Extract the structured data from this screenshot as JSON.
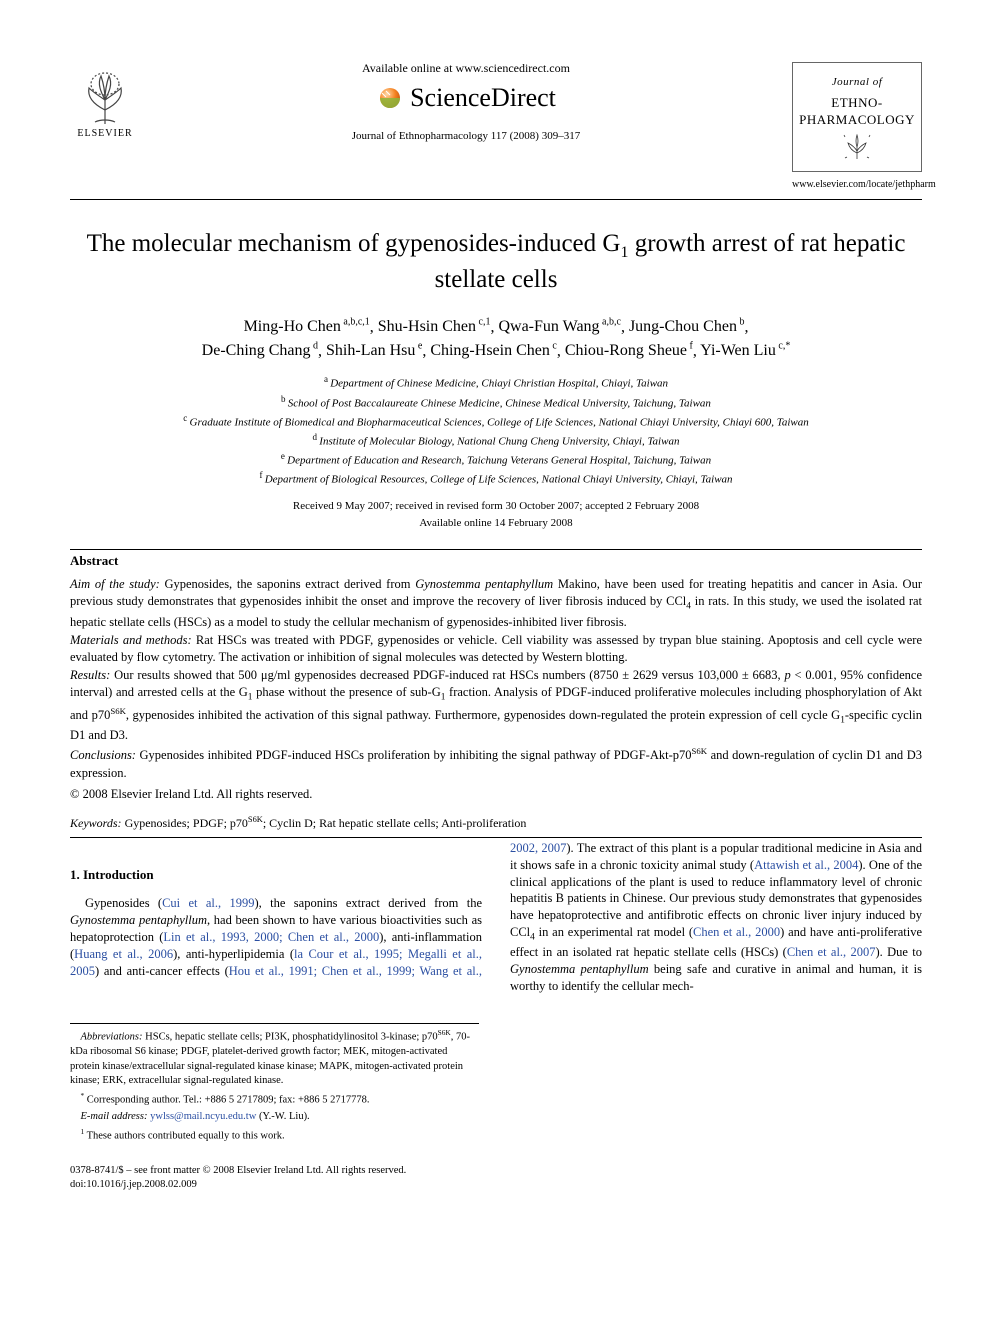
{
  "header": {
    "elsevier_label": "ELSEVIER",
    "available_online": "Available online at www.sciencedirect.com",
    "sciencedirect": "ScienceDirect",
    "journal_ref": "Journal of Ethnopharmacology 117 (2008) 309–317",
    "journal_box_top": "Journal of",
    "journal_box_main1": "ETHNO-",
    "journal_box_main2": "PHARMACOLOGY",
    "journal_url": "www.elsevier.com/locate/jethpharm"
  },
  "article": {
    "title_pre": "The molecular mechanism of gypenosides-induced G",
    "title_sub": "1",
    "title_post": " growth arrest of rat hepatic stellate cells",
    "authors_html_parts": [
      {
        "name": "Ming-Ho Chen",
        "sup": "a,b,c,1"
      },
      {
        "name": "Shu-Hsin Chen",
        "sup": "c,1"
      },
      {
        "name": "Qwa-Fun Wang",
        "sup": "a,b,c"
      },
      {
        "name": "Jung-Chou Chen",
        "sup": "b"
      },
      {
        "name": "De-Ching Chang",
        "sup": "d"
      },
      {
        "name": "Shih-Lan Hsu",
        "sup": "e"
      },
      {
        "name": "Ching-Hsein Chen",
        "sup": "c"
      },
      {
        "name": "Chiou-Rong Sheue",
        "sup": "f"
      },
      {
        "name": "Yi-Wen Liu",
        "sup": "c,*"
      }
    ],
    "affiliations": [
      {
        "tag": "a",
        "text": "Department of Chinese Medicine, Chiayi Christian Hospital, Chiayi, Taiwan"
      },
      {
        "tag": "b",
        "text": "School of Post Baccalaureate Chinese Medicine, Chinese Medical University, Taichung, Taiwan"
      },
      {
        "tag": "c",
        "text": "Graduate Institute of Biomedical and Biopharmaceutical Sciences, College of Life Sciences, National Chiayi University, Chiayi 600, Taiwan"
      },
      {
        "tag": "d",
        "text": "Institute of Molecular Biology, National Chung Cheng University, Chiayi, Taiwan"
      },
      {
        "tag": "e",
        "text": "Department of Education and Research, Taichung Veterans General Hospital, Taichung, Taiwan"
      },
      {
        "tag": "f",
        "text": "Department of Biological Resources, College of Life Sciences, National Chiayi University, Chiayi, Taiwan"
      }
    ],
    "dates_line1": "Received 9 May 2007; received in revised form 30 October 2007; accepted 2 February 2008",
    "dates_line2": "Available online 14 February 2008"
  },
  "abstract": {
    "heading": "Abstract",
    "aim_label": "Aim of the study:",
    "aim_text_1": " Gypenosides, the saponins extract derived from ",
    "aim_italic_1": "Gynostemma pentaphyllum",
    "aim_text_2": " Makino, have been used for treating hepatitis and cancer in Asia. Our previous study demonstrates that gypenosides inhibit the onset and improve the recovery of liver fibrosis induced by CCl",
    "aim_sub_1": "4",
    "aim_text_3": " in rats. In this study, we used the isolated rat hepatic stellate cells (HSCs) as a model to study the cellular mechanism of gypenosides-inhibited liver fibrosis.",
    "mm_label": "Materials and methods:",
    "mm_text": " Rat HSCs was treated with PDGF, gypenosides or vehicle. Cell viability was assessed by trypan blue staining. Apoptosis and cell cycle were evaluated by flow cytometry. The activation or inhibition of signal molecules was detected by Western blotting.",
    "res_label": "Results:",
    "res_text_1": " Our results showed that 500 μg/ml gypenosides decreased PDGF-induced rat HSCs numbers (8750 ± 2629 versus 103,000 ± 6683, ",
    "res_italic_p": "p",
    "res_text_2": " < 0.001, 95% confidence interval) and arrested cells at the G",
    "res_sub_g1a": "1",
    "res_text_3": " phase without the presence of sub-G",
    "res_sub_g1b": "1",
    "res_text_4": " fraction. Analysis of PDGF-induced proliferative molecules including phosphorylation of Akt and p70",
    "res_sup_s6k_a": "S6K",
    "res_text_5": ", gypenosides inhibited the activation of this signal pathway. Furthermore, gypenosides down-regulated the protein expression of cell cycle G",
    "res_sub_g1c": "1",
    "res_text_6": "-specific cyclin D1 and D3.",
    "con_label": "Conclusions:",
    "con_text_1": " Gypenosides inhibited PDGF-induced HSCs proliferation by inhibiting the signal pathway of PDGF-Akt-p70",
    "con_sup_s6k": "S6K",
    "con_text_2": " and down-regulation of cyclin D1 and D3 expression.",
    "copyright": "© 2008 Elsevier Ireland Ltd. All rights reserved."
  },
  "keywords": {
    "label": "Keywords:",
    "text_1": " Gypenosides; PDGF; p70",
    "sup_1": "S6K",
    "text_2": "; Cyclin D; Rat hepatic stellate cells; Anti-proliferation"
  },
  "intro": {
    "heading": "1.  Introduction",
    "p1_a": "Gypenosides (",
    "p1_link1": "Cui et al., 1999",
    "p1_b": "), the saponins extract derived from the ",
    "p1_it1": "Gynostemma pentaphyllum",
    "p1_c": ", had been shown to have various bioactivities such as hepatoprotection (",
    "p1_link2": "Lin et al., 1993,",
    "p1_link2b": "2000; Chen et al., 2000",
    "p1_d": "), anti-inflammation (",
    "p1_link3": "Huang et al., 2006",
    "p1_e": "), anti-hyperlipidemia (",
    "p1_link4": "la Cour et al., 1995; Megalli et al., 2005",
    "p1_f": ") and anti-cancer effects (",
    "p1_link5": "Hou et al., 1991; Chen et al., 1999; Wang et al., 2002, 2007",
    "p1_g": "). The extract of this plant is a popular traditional medicine in Asia and it shows safe in a chronic toxicity animal study (",
    "p1_link6": "Attawish et al., 2004",
    "p1_h": "). One of the clinical applications of the plant is used to reduce inflammatory level of chronic hepatitis B patients in Chinese. Our previous study demonstrates that gypenosides have hepatoprotective and antifibrotic effects on chronic liver injury induced by CCl",
    "p1_sub1": "4",
    "p1_i": " in an experimental rat model (",
    "p1_link7": "Chen et al., 2000",
    "p1_j": ") and have anti-proliferative effect in an isolated rat hepatic stellate cells (HSCs) (",
    "p1_link8": "Chen et al., 2007",
    "p1_k": "). Due to ",
    "p1_it2": "Gynostemma pentaphyllum",
    "p1_l": " being safe and curative in animal and human, it is worthy to identify the cellular mech-"
  },
  "footnotes": {
    "abbrev_label": "Abbreviations:",
    "abbrev_text_1": " HSCs, hepatic stellate cells; PI3K, phosphatidylinositol 3-kinase; p70",
    "abbrev_sup": "S6K",
    "abbrev_text_2": ", 70-kDa ribosomal S6 kinase; PDGF, platelet-derived growth factor; MEK, mitogen-activated protein kinase/extracellular signal-regulated kinase kinase; MAPK, mitogen-activated protein kinase; ERK, extracellular signal-regulated kinase.",
    "corr_label": "*",
    "corr_text": " Corresponding author. Tel.: +886 5 2717809; fax: +886 5 2717778.",
    "email_label": "E-mail address:",
    "email_addr": "ywlss@mail.ncyu.edu.tw",
    "email_tail": " (Y.-W. Liu).",
    "equal_label": "1",
    "equal_text": " These authors contributed equally to this work."
  },
  "footer": {
    "line1": "0378-8741/$ – see front matter © 2008 Elsevier Ireland Ltd. All rights reserved.",
    "line2": "doi:10.1016/j.jep.2008.02.009"
  },
  "colors": {
    "link": "#2b4fa2",
    "text": "#000000",
    "background": "#ffffff",
    "elsevier_orange": "#e8711c",
    "sd_orange": "#f58220",
    "sd_green": "#8cb63c"
  }
}
